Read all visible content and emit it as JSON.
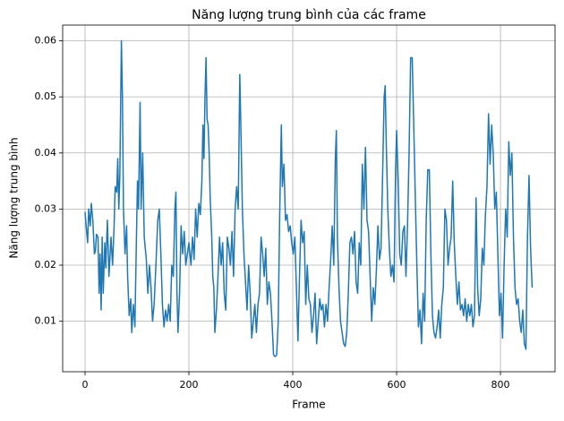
{
  "chart_data": {
    "type": "line",
    "title": "Năng lượng trung bình của các frame",
    "xlabel": "Frame",
    "ylabel": "Năng lượng trung bình",
    "x": [
      0,
      3,
      5,
      7,
      10,
      12,
      15,
      18,
      20,
      22,
      25,
      27,
      29,
      31,
      33,
      35,
      38,
      40,
      43,
      46,
      50,
      53,
      56,
      58,
      61,
      63,
      65,
      67,
      70,
      72,
      74,
      77,
      80,
      82,
      85,
      88,
      90,
      93,
      96,
      99,
      101,
      103,
      106,
      108,
      111,
      114,
      118,
      121,
      124,
      127,
      130,
      133,
      136,
      140,
      143,
      146,
      149,
      152,
      155,
      158,
      161,
      164,
      167,
      170,
      173,
      175,
      177,
      179,
      182,
      185,
      188,
      191,
      194,
      197,
      200,
      204,
      207,
      210,
      213,
      216,
      219,
      222,
      225,
      227,
      229,
      231,
      233,
      235,
      237,
      239,
      241,
      244,
      246,
      248,
      250,
      253,
      256,
      259,
      262,
      265,
      268,
      271,
      274,
      277,
      280,
      283,
      286,
      289,
      292,
      295,
      298,
      300,
      303,
      306,
      309,
      312,
      315,
      318,
      321,
      324,
      327,
      330,
      333,
      336,
      339,
      342,
      345,
      348,
      351,
      354,
      357,
      360,
      363,
      366,
      369,
      372,
      375,
      378,
      380,
      383,
      386,
      389,
      392,
      395,
      398,
      401,
      404,
      407,
      410,
      413,
      416,
      419,
      422,
      425,
      428,
      431,
      434,
      437,
      440,
      443,
      446,
      449,
      452,
      455,
      458,
      461,
      464,
      467,
      470,
      473,
      476,
      479,
      482,
      484,
      486,
      489,
      492,
      495,
      498,
      501,
      504,
      507,
      510,
      513,
      516,
      519,
      522,
      525,
      528,
      531,
      534,
      537,
      540,
      543,
      546,
      549,
      552,
      555,
      558,
      561,
      564,
      567,
      570,
      573,
      576,
      578,
      580,
      583,
      586,
      589,
      592,
      595,
      598,
      600,
      603,
      606,
      609,
      612,
      615,
      618,
      621,
      624,
      627,
      630,
      633,
      636,
      639,
      642,
      645,
      648,
      651,
      654,
      657,
      660,
      663,
      666,
      669,
      672,
      675,
      678,
      681,
      684,
      687,
      690,
      693,
      696,
      699,
      702,
      705,
      708,
      711,
      714,
      717,
      720,
      723,
      726,
      729,
      732,
      735,
      738,
      741,
      744,
      747,
      750,
      753,
      756,
      759,
      762,
      765,
      768,
      771,
      774,
      777,
      780,
      783,
      786,
      789,
      792,
      795,
      798,
      801,
      804,
      807,
      810,
      813,
      816,
      819,
      822,
      825,
      828,
      831,
      834,
      837,
      840,
      843,
      846,
      849,
      852,
      855,
      858,
      861
    ],
    "series": [
      {
        "color": "#1f77b4",
        "values": [
          0.0295,
          0.026,
          0.024,
          0.03,
          0.027,
          0.031,
          0.028,
          0.022,
          0.0225,
          0.0255,
          0.025,
          0.015,
          0.022,
          0.012,
          0.025,
          0.015,
          0.024,
          0.0195,
          0.028,
          0.018,
          0.025,
          0.02,
          0.027,
          0.034,
          0.033,
          0.039,
          0.03,
          0.036,
          0.06,
          0.05,
          0.03,
          0.022,
          0.027,
          0.018,
          0.011,
          0.014,
          0.008,
          0.013,
          0.009,
          0.025,
          0.035,
          0.03,
          0.049,
          0.03,
          0.04,
          0.025,
          0.021,
          0.015,
          0.02,
          0.016,
          0.01,
          0.013,
          0.019,
          0.028,
          0.03,
          0.022,
          0.013,
          0.009,
          0.012,
          0.01,
          0.013,
          0.01,
          0.02,
          0.018,
          0.03,
          0.033,
          0.015,
          0.008,
          0.015,
          0.027,
          0.022,
          0.026,
          0.02,
          0.022,
          0.024,
          0.02,
          0.025,
          0.021,
          0.03,
          0.025,
          0.031,
          0.029,
          0.035,
          0.045,
          0.039,
          0.05,
          0.057,
          0.046,
          0.045,
          0.04,
          0.032,
          0.025,
          0.018,
          0.016,
          0.008,
          0.012,
          0.018,
          0.025,
          0.02,
          0.024,
          0.015,
          0.012,
          0.025,
          0.023,
          0.02,
          0.026,
          0.018,
          0.03,
          0.034,
          0.03,
          0.054,
          0.045,
          0.03,
          0.022,
          0.017,
          0.012,
          0.02,
          0.015,
          0.007,
          0.01,
          0.013,
          0.008,
          0.013,
          0.015,
          0.025,
          0.022,
          0.018,
          0.023,
          0.013,
          0.017,
          0.015,
          0.01,
          0.004,
          0.0037,
          0.004,
          0.01,
          0.03,
          0.045,
          0.034,
          0.038,
          0.028,
          0.029,
          0.026,
          0.027,
          0.024,
          0.022,
          0.025,
          0.016,
          0.0065,
          0.018,
          0.028,
          0.024,
          0.026,
          0.013,
          0.02,
          0.014,
          0.013,
          0.008,
          0.011,
          0.015,
          0.006,
          0.01,
          0.014,
          0.012,
          0.013,
          0.009,
          0.013,
          0.01,
          0.016,
          0.021,
          0.027,
          0.02,
          0.039,
          0.044,
          0.025,
          0.016,
          0.01,
          0.008,
          0.006,
          0.0055,
          0.008,
          0.015,
          0.024,
          0.025,
          0.022,
          0.026,
          0.017,
          0.015,
          0.024,
          0.02,
          0.038,
          0.03,
          0.041,
          0.028,
          0.026,
          0.018,
          0.01,
          0.016,
          0.013,
          0.019,
          0.027,
          0.021,
          0.023,
          0.036,
          0.05,
          0.052,
          0.042,
          0.03,
          0.023,
          0.018,
          0.02,
          0.017,
          0.037,
          0.044,
          0.035,
          0.022,
          0.02,
          0.026,
          0.027,
          0.018,
          0.027,
          0.04,
          0.057,
          0.057,
          0.045,
          0.032,
          0.02,
          0.009,
          0.012,
          0.006,
          0.015,
          0.01,
          0.028,
          0.037,
          0.037,
          0.022,
          0.011,
          0.008,
          0.007,
          0.009,
          0.012,
          0.007,
          0.013,
          0.016,
          0.03,
          0.028,
          0.02,
          0.023,
          0.025,
          0.035,
          0.024,
          0.018,
          0.013,
          0.017,
          0.012,
          0.013,
          0.011,
          0.014,
          0.01,
          0.013,
          0.011,
          0.013,
          0.009,
          0.011,
          0.032,
          0.016,
          0.011,
          0.014,
          0.023,
          0.02,
          0.029,
          0.034,
          0.047,
          0.038,
          0.045,
          0.04,
          0.03,
          0.033,
          0.022,
          0.011,
          0.015,
          0.007,
          0.02,
          0.03,
          0.025,
          0.042,
          0.036,
          0.04,
          0.025,
          0.016,
          0.013,
          0.014,
          0.01,
          0.008,
          0.012,
          0.006,
          0.005,
          0.025,
          0.036,
          0.023,
          0.016
        ]
      }
    ],
    "xlim": [
      -43.1,
      905.1
    ],
    "xticks": [
      0,
      200,
      400,
      600,
      800
    ],
    "ylim": [
      0.001,
      0.0628
    ],
    "yticks": [
      0.01,
      0.02,
      0.03,
      0.04,
      0.05,
      0.06
    ],
    "grid": true
  }
}
